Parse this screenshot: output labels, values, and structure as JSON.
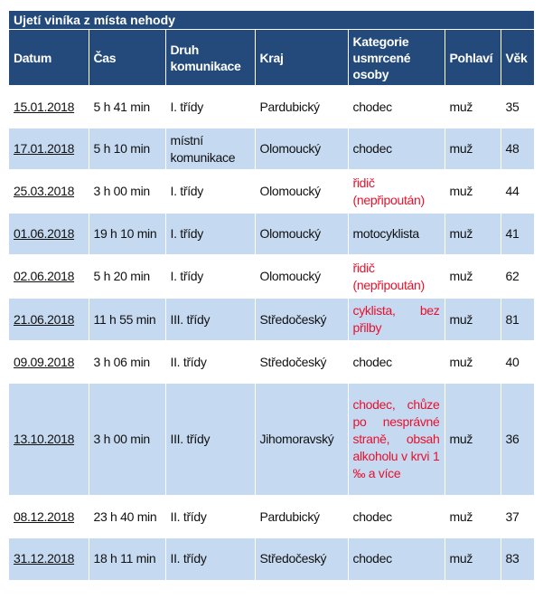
{
  "title": "Ujetí viníka z místa nehody",
  "columns": [
    "Datum",
    "Čas",
    "Druh komunikace",
    "Kraj",
    "Kategorie usmrcené osoby",
    "Pohlaví",
    "Věk"
  ],
  "accent_colors": {
    "header": "#234a7a",
    "stripe": "#c5d9f1",
    "highlight_text": "#e8112d"
  },
  "rows": [
    {
      "date": "15.01.2018",
      "time": "5 h 41 min",
      "road": "I. třídy",
      "region": "Pardubický",
      "category": "chodec",
      "highlight": false,
      "sex": "muž",
      "age": "35"
    },
    {
      "date": "17.01.2018",
      "time": "5 h 10 min",
      "road": "místní komunikace",
      "region": "Olomoucký",
      "category": "chodec",
      "highlight": false,
      "sex": "muž",
      "age": "48"
    },
    {
      "date": "25.03.2018",
      "time": "3 h 00 min",
      "road": "I. třídy",
      "region": "Olomoucký",
      "category": "řidič (nepřipoután)",
      "highlight": true,
      "sex": "muž",
      "age": "44"
    },
    {
      "date": "01.06.2018",
      "time": "19 h 10 min",
      "road": "I. třídy",
      "region": "Olomoucký",
      "category": "motocyklista",
      "highlight": false,
      "sex": "muž",
      "age": "41"
    },
    {
      "date": "02.06.2018",
      "time": "5 h 20 min",
      "road": "I. třídy",
      "region": "Olomoucký",
      "category": "řidič (nepřipoután)",
      "highlight": true,
      "sex": "muž",
      "age": "62"
    },
    {
      "date": "21.06.2018",
      "time": "11 h 55 min",
      "road": "III. třídy",
      "region": "Středočeský",
      "category": "cyklista, bez přilby",
      "highlight": true,
      "sex": "muž",
      "age": "81"
    },
    {
      "date": "09.09.2018",
      "time": "3 h 06 min",
      "road": "II. třídy",
      "region": "Středočeský",
      "category": "chodec",
      "highlight": false,
      "sex": "muž",
      "age": "40"
    },
    {
      "date": "13.10.2018",
      "time": "3 h 00 min",
      "road": "III. třídy",
      "region": "Jihomoravský",
      "category": "chodec, chůze po nesprávné straně, obsah alkoholu v krvi 1 ‰ a více",
      "highlight": true,
      "sex": "muž",
      "age": "36"
    },
    {
      "date": "08.12.2018",
      "time": "23 h 40 min",
      "road": "II. třídy",
      "region": "Pardubický",
      "category": "chodec",
      "highlight": false,
      "sex": "muž",
      "age": "37"
    },
    {
      "date": "31.12.2018",
      "time": "18 h 11 min",
      "road": "II. třídy",
      "region": "Středočeský",
      "category": "chodec",
      "highlight": false,
      "sex": "muž",
      "age": "83"
    }
  ]
}
